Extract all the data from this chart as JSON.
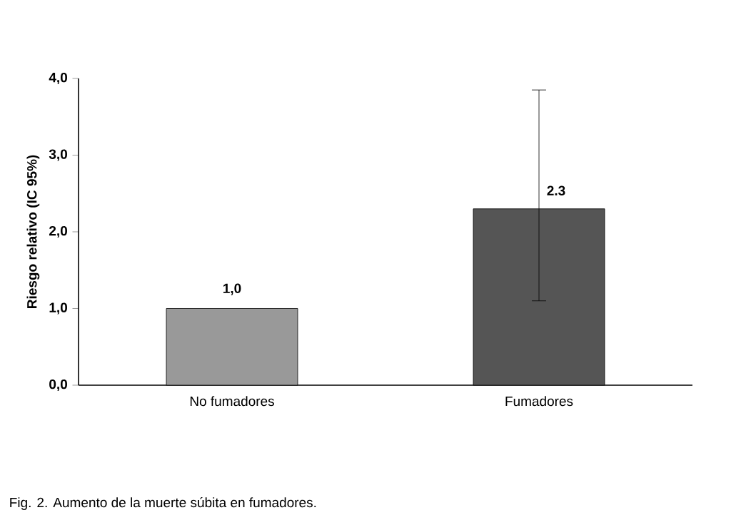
{
  "chart_data": {
    "type": "bar",
    "ylabel": "Riesgo relativo (IC 95%)",
    "categories": [
      "No fumadores",
      "Fumadores"
    ],
    "values": [
      1.0,
      2.3
    ],
    "colors": [
      "#999999",
      "#555555"
    ],
    "errors": [
      null,
      [
        1.1,
        3.85
      ]
    ],
    "value_labels": [
      "1,0",
      "2.3"
    ],
    "ylim": [
      0,
      4
    ],
    "yticks": [
      {
        "value": 0,
        "label": "0,0"
      },
      {
        "value": 1,
        "label": "1,0"
      },
      {
        "value": 2,
        "label": "2,0"
      },
      {
        "value": 3,
        "label": "3,0"
      },
      {
        "value": 4,
        "label": "4,0"
      }
    ],
    "annotations": [
      "Fig. 2. Aumento de la muerte súbita en fumadores."
    ]
  }
}
